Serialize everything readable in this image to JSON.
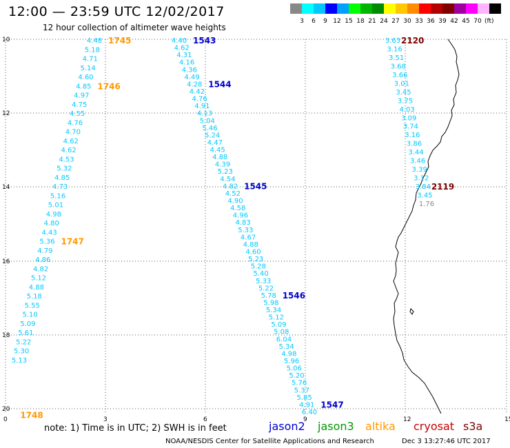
{
  "title": "12:00 — 23:59 UTC 12/02/2017",
  "subtitle": "12 hour collection of altimeter wave heights",
  "legend": {
    "unit": "(ft)",
    "ticks": [
      "3",
      "6",
      "9",
      "12",
      "15",
      "18",
      "21",
      "24",
      "27",
      "30",
      "33",
      "36",
      "39",
      "42",
      "45",
      "70"
    ],
    "colors": [
      "#888888",
      "#00ffff",
      "#00c8ff",
      "#0000ff",
      "#00a0ff",
      "#00ff00",
      "#00b400",
      "#008c00",
      "#ffff00",
      "#ffc800",
      "#ff8c00",
      "#ff0000",
      "#b40000",
      "#800000",
      "#a000a0",
      "#ff00ff",
      "#ffb4ff",
      "#000000"
    ]
  },
  "axes": {
    "y_labels": [
      "10",
      "12",
      "14",
      "16",
      "18",
      "20"
    ],
    "x_labels": [
      "0",
      "3",
      "6",
      "9",
      "12",
      "15"
    ]
  },
  "note": "note: 1) Time is in UTC; 2) SWH is in feet",
  "satellites": [
    {
      "name": "jason2",
      "color": "#0000cc"
    },
    {
      "name": "jason3",
      "color": "#009900"
    },
    {
      "name": "altika",
      "color": "#ff9900"
    },
    {
      "name": "cryosat",
      "color": "#cc0000"
    },
    {
      "name": "s3a",
      "color": "#800000"
    }
  ],
  "credit": "NOAA/NESDIS Center for Satellite Applications and Research",
  "generated": "Dec  3 13:27:46 UTC 2017",
  "passes": [
    {
      "sat": "altika",
      "color": "#ff9900",
      "time_labels": [
        {
          "t": "1745",
          "i": 0
        },
        {
          "t": "1746",
          "i": 5
        },
        {
          "t": "1747",
          "i": 22
        },
        {
          "t": "1748",
          "i": 41
        }
      ],
      "values": [
        "4.48",
        "5.18",
        "4.71",
        "5.14",
        "4.60",
        "4.85",
        "4.97",
        "4.75",
        "4.55",
        "4.76",
        "4.70",
        "4.62",
        "4.62",
        "4.53",
        "5.32",
        "4.85",
        "4.73",
        "5.16",
        "5.01",
        "4.98",
        "4.80",
        "4.43",
        "5.36",
        "4.79",
        "4.86",
        "4.82",
        "5.12",
        "4.88",
        "5.18",
        "5.55",
        "5.10",
        "5.09",
        "5.61",
        "5.22",
        "5.30",
        "5.13"
      ]
    },
    {
      "sat": "jason2",
      "color": "#0000cc",
      "time_labels": [
        {
          "t": "1543",
          "i": 0
        },
        {
          "t": "1544",
          "i": 6
        },
        {
          "t": "1545",
          "i": 20
        },
        {
          "t": "1546",
          "i": 35
        },
        {
          "t": "1547",
          "i": 50
        }
      ],
      "values": [
        "4.40",
        "4.62",
        "4.31",
        "4.16",
        "4.36",
        "4.49",
        "4.28",
        "4.42",
        "4.76",
        "4.91",
        "4.13",
        "5.04",
        "5.46",
        "5.24",
        "4.47",
        "4.45",
        "4.88",
        "4.39",
        "5.23",
        "4.54",
        "4.82",
        "4.52",
        "4.90",
        "4.58",
        "4.96",
        "4.83",
        "5.33",
        "4.67",
        "4.88",
        "4.60",
        "5.23",
        "5.28",
        "5.40",
        "5.33",
        "5.22",
        "5.78",
        "5.98",
        "5.34",
        "5.12",
        "5.09",
        "5.08",
        "6.04",
        "5.34",
        "4.98",
        "5.96",
        "5.06",
        "5.20",
        "5.76",
        "5.37",
        "5.85",
        "4.91",
        "6.40"
      ]
    },
    {
      "sat": "s3a",
      "color": "#800000",
      "time_labels": [
        {
          "t": "2120",
          "i": 0
        },
        {
          "t": "2119",
          "i": 17
        }
      ],
      "values": [
        "3.63",
        "3.16",
        "3.51",
        "3.68",
        "3.66",
        "3.01",
        "3.45",
        "3.75",
        "4.03",
        "3.09",
        "3.74",
        "3.16",
        "3.86",
        "3.44",
        "3.46",
        "3.39",
        "3.12",
        "3.84",
        "3.45",
        "1.76"
      ]
    }
  ]
}
